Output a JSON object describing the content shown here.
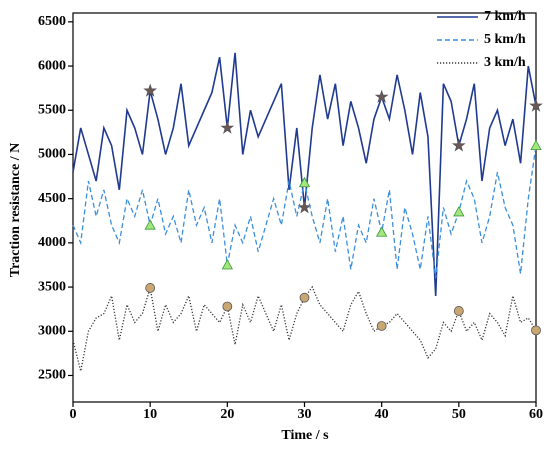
{
  "chart_data": {
    "type": "line",
    "xlabel": "Time / s",
    "ylabel": "Traction resistance / N",
    "xlim": [
      0,
      60
    ],
    "ylim": [
      2200,
      6600
    ],
    "xticks": [
      0,
      10,
      20,
      30,
      40,
      50,
      60
    ],
    "yticks": [
      2500,
      3000,
      3500,
      4000,
      4500,
      5000,
      5500,
      6000,
      6500
    ],
    "legend": "upper right",
    "markevery": 10,
    "x": [
      0,
      1,
      2,
      3,
      4,
      5,
      6,
      7,
      8,
      9,
      10,
      11,
      12,
      13,
      14,
      15,
      16,
      17,
      18,
      19,
      20,
      21,
      22,
      23,
      24,
      25,
      26,
      27,
      28,
      29,
      30,
      31,
      32,
      33,
      34,
      35,
      36,
      37,
      38,
      39,
      40,
      41,
      42,
      43,
      44,
      45,
      46,
      47,
      48,
      49,
      50,
      51,
      52,
      53,
      54,
      55,
      56,
      57,
      58,
      59,
      60
    ],
    "series": [
      {
        "name": "7 km/h",
        "color": "#1f3a8f",
        "dash": "solid",
        "marker": "star",
        "marker_color": "#6b5757",
        "values": [
          4800,
          5300,
          5000,
          4700,
          5300,
          5100,
          4600,
          5500,
          5300,
          5000,
          5720,
          5400,
          5000,
          5300,
          5800,
          5100,
          5300,
          5500,
          5700,
          6100,
          5300,
          6150,
          5000,
          5500,
          5200,
          5400,
          5600,
          5800,
          4600,
          5300,
          4400,
          5300,
          5900,
          5400,
          5800,
          5100,
          5600,
          5300,
          4900,
          5400,
          5650,
          5400,
          5900,
          5500,
          5000,
          5700,
          5200,
          3400,
          5800,
          5600,
          5100,
          5400,
          5800,
          4700,
          5300,
          5500,
          5100,
          5400,
          4900,
          6000,
          5550
        ]
      },
      {
        "name": "5 km/h",
        "color": "#3b8fdc",
        "dash": "dashed",
        "marker": "triangle",
        "marker_color": "#a3e57e",
        "values": [
          4200,
          4000,
          4700,
          4300,
          4600,
          4200,
          4000,
          4500,
          4300,
          4600,
          4200,
          4500,
          4100,
          4300,
          4000,
          4600,
          4200,
          4400,
          4000,
          4500,
          3750,
          4200,
          4000,
          4300,
          3900,
          4200,
          4500,
          4200,
          4700,
          4300,
          4680,
          4300,
          4000,
          4500,
          3900,
          4300,
          3700,
          4200,
          4000,
          4500,
          4120,
          4600,
          3700,
          4400,
          4100,
          3700,
          4300,
          3600,
          4400,
          4100,
          4350,
          4700,
          4500,
          4000,
          4300,
          4800,
          4400,
          4200,
          3650,
          4500,
          5100
        ]
      },
      {
        "name": "3 km/h",
        "color": "#333333",
        "dash": "dotted",
        "marker": "circle",
        "marker_color": "#c9a772",
        "values": [
          2900,
          2550,
          3000,
          3150,
          3200,
          3400,
          2900,
          3300,
          3100,
          3200,
          3490,
          3000,
          3300,
          3100,
          3200,
          3400,
          3000,
          3300,
          3200,
          3100,
          3280,
          2850,
          3300,
          3100,
          3400,
          3200,
          3000,
          3300,
          2900,
          3200,
          3380,
          3500,
          3300,
          3200,
          3100,
          3000,
          3300,
          3450,
          3200,
          3000,
          3060,
          3100,
          3200,
          3100,
          3000,
          2900,
          2700,
          2800,
          3100,
          3000,
          3230,
          3000,
          3100,
          2900,
          3200,
          3100,
          2950,
          3400,
          3100,
          3150,
          3010
        ]
      }
    ]
  }
}
